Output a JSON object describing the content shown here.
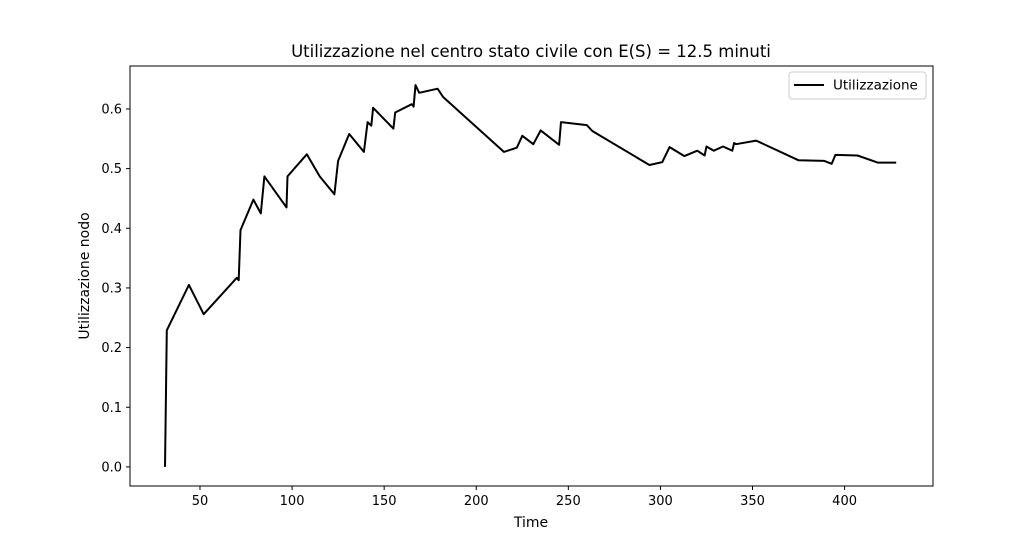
{
  "chart_data": {
    "type": "line",
    "title": "Utilizzazione nel centro stato civile con E(S) = 12.5 minuti",
    "xlabel": "Time",
    "ylabel": "Utilizzazione nodo",
    "xlim": [
      12,
      448
    ],
    "ylim": [
      -0.032,
      0.672
    ],
    "xticks": [
      50,
      100,
      150,
      200,
      250,
      300,
      350,
      400
    ],
    "yticks": [
      0.0,
      0.1,
      0.2,
      0.3,
      0.4,
      0.5,
      0.6
    ],
    "grid": false,
    "legend_position": "top-right",
    "series": [
      {
        "name": "Utilizzazione",
        "color": "#000000",
        "x": [
          31,
          32,
          44,
          52,
          70,
          71,
          72,
          79,
          83,
          85,
          97,
          97.5,
          108,
          115,
          123,
          125,
          131,
          139,
          141,
          143,
          144,
          155,
          156,
          165,
          166,
          167,
          169,
          179,
          182,
          215,
          222,
          225,
          231,
          235,
          245,
          246,
          260,
          263,
          294,
          301,
          305,
          313,
          320,
          324,
          325,
          329,
          334,
          339,
          340,
          341,
          352,
          375,
          389,
          393,
          395,
          407,
          418,
          428
        ],
        "y": [
          0.0,
          0.229,
          0.305,
          0.256,
          0.317,
          0.313,
          0.397,
          0.448,
          0.425,
          0.487,
          0.435,
          0.487,
          0.524,
          0.487,
          0.457,
          0.513,
          0.558,
          0.528,
          0.578,
          0.572,
          0.602,
          0.567,
          0.594,
          0.608,
          0.604,
          0.64,
          0.627,
          0.634,
          0.62,
          0.528,
          0.535,
          0.555,
          0.541,
          0.564,
          0.54,
          0.578,
          0.573,
          0.563,
          0.506,
          0.511,
          0.536,
          0.521,
          0.53,
          0.522,
          0.537,
          0.53,
          0.537,
          0.53,
          0.543,
          0.541,
          0.547,
          0.514,
          0.513,
          0.508,
          0.523,
          0.522,
          0.51,
          0.51
        ]
      }
    ]
  }
}
